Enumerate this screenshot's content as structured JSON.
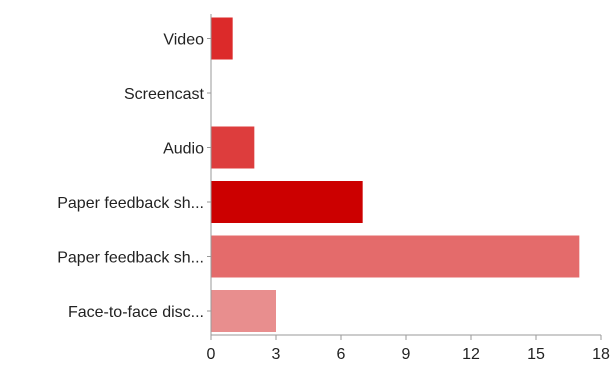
{
  "chart_data": {
    "type": "bar",
    "orientation": "horizontal",
    "categories": [
      "Video",
      "Screencast",
      "Audio",
      "Paper feedback sh...",
      "Paper feedback sh...",
      "Face-to-face disc..."
    ],
    "values": [
      1,
      0,
      2,
      7,
      17,
      3
    ],
    "colors": [
      "#dc2a2a",
      "#dc2a2a",
      "#dd3d3d",
      "#cc0000",
      "#e46b6b",
      "#e88e8e"
    ],
    "xlim": [
      0,
      18
    ],
    "xticks": [
      0,
      3,
      6,
      9,
      12,
      15,
      18
    ],
    "xtick_labels": [
      "0",
      "3",
      "6",
      "9",
      "12",
      "15",
      "18"
    ],
    "grid": false,
    "legend": "none"
  }
}
